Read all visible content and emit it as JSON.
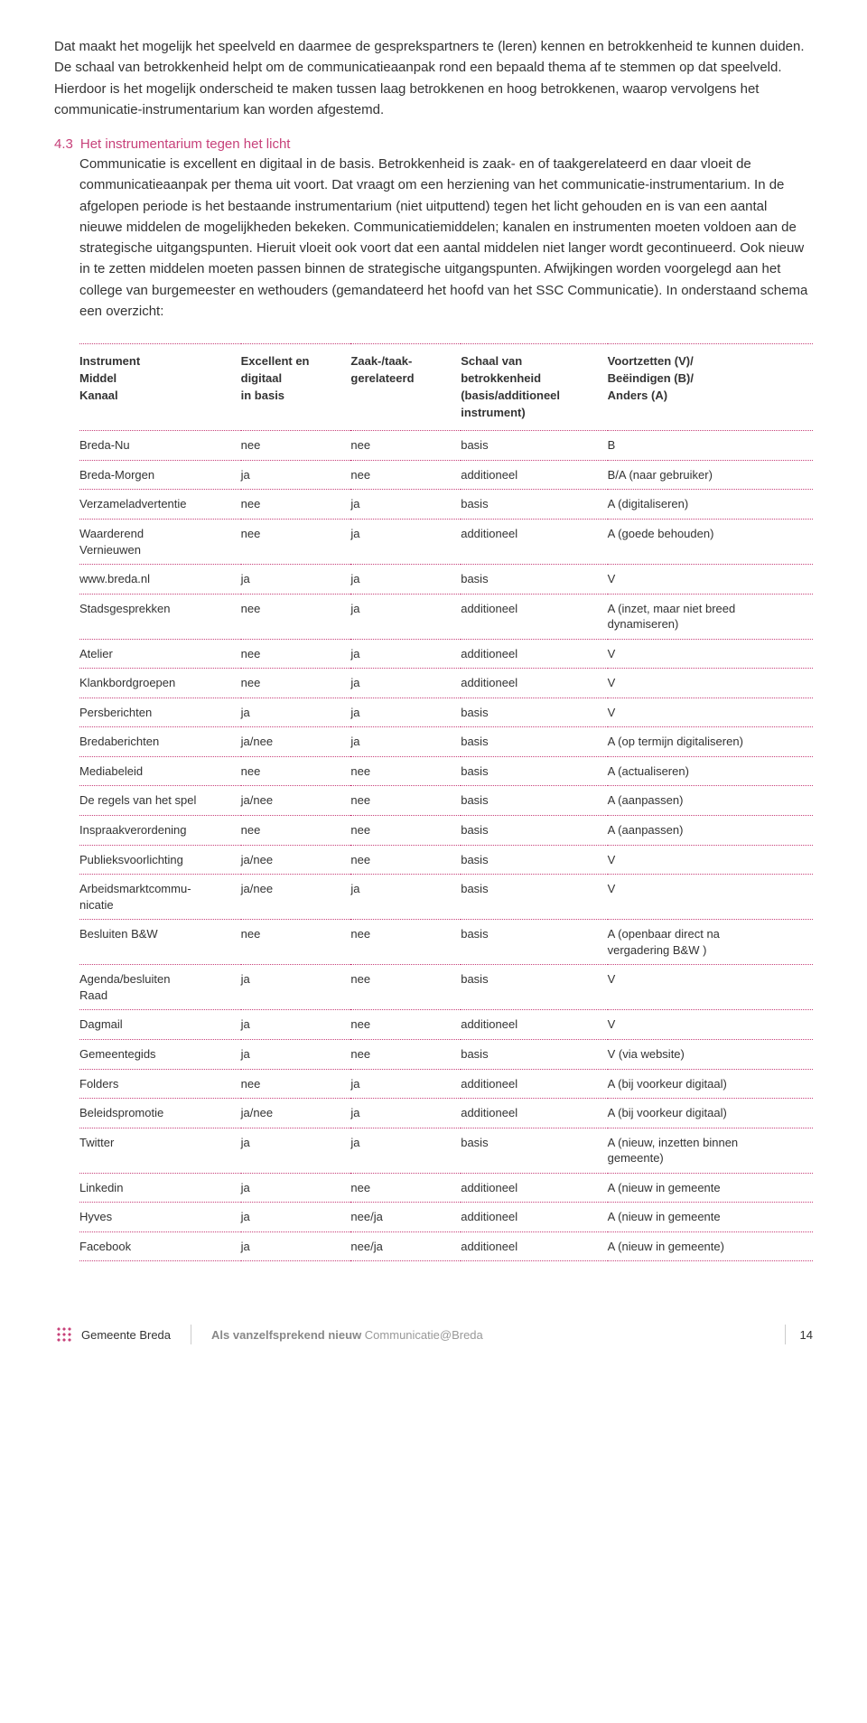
{
  "intro": {
    "para": "Dat maakt het mogelijk het speelveld en daarmee de gesprekspartners te (leren) kennen en betrokkenheid te kunnen duiden. De schaal van betrokkenheid helpt om de communicatie­aanpak rond een bepaald thema af te stemmen op dat speelveld. Hierdoor is het mogelijk onderscheid te maken tussen laag betrokkenen en hoog betrokkenen, waarop vervolgens het communicatie-instrumentarium kan worden afgestemd."
  },
  "section": {
    "num": "4.3",
    "title": "Het instrumentarium tegen het licht",
    "body": "Communicatie is excellent en digitaal in de basis. Betrokkenheid is zaak- en of taakgerela­teerd en daar vloeit de communicatieaanpak per thema uit voort. Dat vraagt om een herziening van het communicatie-instrumentarium. In de afgelopen periode is het bestaande instrumentarium (niet uitputtend)  tegen het licht gehouden en is van een aantal nieuwe middelen de mogelijkheden bekeken. Communicatiemiddelen; kanalen en instrumenten moeten voldoen aan de strategische uitgangspunten. Hieruit vloeit ook voort dat een aantal middelen niet langer wordt gecontinueerd. Ook nieuw in te zetten middelen moeten passen binnen de strategische uitgangspunten. Afwijkingen worden voorgelegd aan het college van burgemeester en wethouders (gemandateerd het hoofd van het SSC Communicatie). In onderstaand schema een overzicht:"
  },
  "table": {
    "headers": [
      "Instrument\nMiddel\nKanaal",
      "Excellent en\ndigitaal\nin basis",
      "Zaak-/taak-\ngerelateerd",
      "Schaal van\nbetrokkenheid\n(basis/additioneel\ninstrument)",
      "Voortzetten (V)/\nBeëindigen (B)/\nAnders (A)"
    ],
    "col_widths": [
      "22%",
      "15%",
      "15%",
      "20%",
      "28%"
    ],
    "border_color": "#c7417a",
    "font_size": 13,
    "rows": [
      [
        "Breda-Nu",
        "nee",
        "nee",
        "basis",
        "B"
      ],
      [
        "Breda-Morgen",
        "ja",
        "nee",
        "additioneel",
        "B/A (naar gebruiker)"
      ],
      [
        "Verzameladvertentie",
        "nee",
        "ja",
        "basis",
        "A (digitaliseren)"
      ],
      [
        "Waarderend\nVernieuwen",
        "nee",
        "ja",
        "additioneel",
        "A (goede behouden)"
      ],
      [
        "www.breda.nl",
        "ja",
        "ja",
        "basis",
        "V"
      ],
      [
        "Stadsgesprekken",
        "nee",
        "ja",
        "additioneel",
        "A (inzet, maar  niet breed\ndynamiseren)"
      ],
      [
        "Atelier",
        "nee",
        "ja",
        "additioneel",
        "V"
      ],
      [
        "Klankbordgroepen",
        "nee",
        "ja",
        "additioneel",
        "V"
      ],
      [
        "Persberichten",
        "ja",
        "ja",
        "basis",
        "V"
      ],
      [
        "Bredaberichten",
        "ja/nee",
        "ja",
        "basis",
        "A (op termijn digitaliseren)"
      ],
      [
        "Mediabeleid",
        "nee",
        "nee",
        "basis",
        "A (actualiseren)"
      ],
      [
        "De regels van het spel",
        "ja/nee",
        "nee",
        "basis",
        "A (aanpassen)"
      ],
      [
        "Inspraakverordening",
        "nee",
        "nee",
        "basis",
        "A (aanpassen)"
      ],
      [
        "Publieksvoorlichting",
        "ja/nee",
        "nee",
        "basis",
        "V"
      ],
      [
        "Arbeidsmarktcommu-\nnicatie",
        "ja/nee",
        "ja",
        "basis",
        "V"
      ],
      [
        "Besluiten B&W",
        "nee",
        "nee",
        "basis",
        "A (openbaar direct na\nvergadering B&W )"
      ],
      [
        "Agenda/besluiten\nRaad",
        "ja",
        "nee",
        "basis",
        "V"
      ],
      [
        "Dagmail",
        "ja",
        "nee",
        "additioneel",
        "V"
      ],
      [
        "Gemeentegids",
        "ja",
        "nee",
        "basis",
        "V (via website)"
      ],
      [
        "Folders",
        "nee",
        "ja",
        "additioneel",
        "A (bij voorkeur digitaal)"
      ],
      [
        "Beleidspromotie",
        "ja/nee",
        "ja",
        "additioneel",
        "A (bij voorkeur digitaal)"
      ],
      [
        "Twitter",
        "ja",
        "ja",
        "basis",
        "A (nieuw, inzetten binnen\ngemeente)"
      ],
      [
        "Linkedin",
        "ja",
        "nee",
        "additioneel",
        "A (nieuw  in gemeente"
      ],
      [
        "Hyves",
        "ja",
        "nee/ja",
        "additioneel",
        "A (nieuw in gemeente"
      ],
      [
        "Facebook",
        "ja",
        "nee/ja",
        "additioneel",
        "A (nieuw in gemeente)"
      ]
    ]
  },
  "footer": {
    "org": "Gemeente Breda",
    "doc_strong": "Als vanzelfsprekend nieuw ",
    "doc_light": "Communicatie@Breda",
    "page": "14",
    "logo_color": "#c7417a"
  },
  "colors": {
    "accent": "#c7417a",
    "text": "#333333",
    "muted": "#999999",
    "divider": "#cccccc",
    "background": "#ffffff"
  }
}
